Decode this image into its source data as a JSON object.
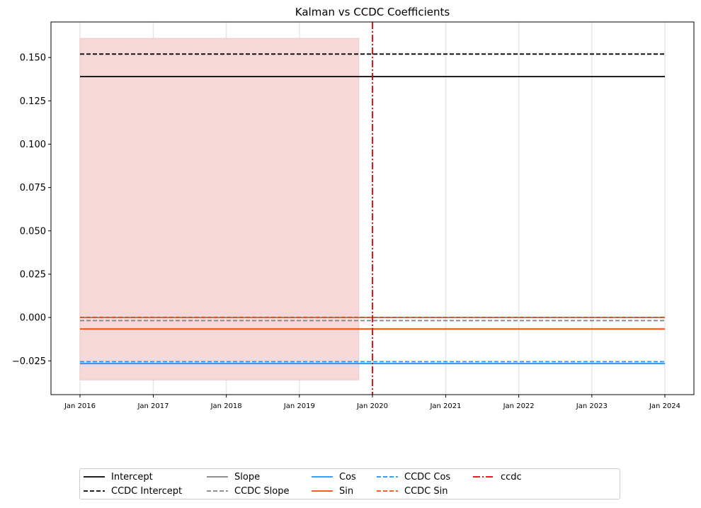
{
  "chart_data": {
    "type": "line",
    "title": "Kalman vs CCDC Coefficients",
    "xlabel": "",
    "ylabel": "",
    "x_range": [
      "2016-01-01",
      "2024-01-01"
    ],
    "ylim": [
      -0.0445,
      0.1705
    ],
    "x_ticks": [
      {
        "date": "2016-01-01",
        "label": "Jan 2016"
      },
      {
        "date": "2017-01-01",
        "label": "Jan 2017"
      },
      {
        "date": "2018-01-01",
        "label": "Jan 2018"
      },
      {
        "date": "2019-01-01",
        "label": "Jan 2019"
      },
      {
        "date": "2020-01-01",
        "label": "Jan 2020"
      },
      {
        "date": "2021-01-01",
        "label": "Jan 2021"
      },
      {
        "date": "2022-01-01",
        "label": "Jan 2022"
      },
      {
        "date": "2023-01-01",
        "label": "Jan 2023"
      },
      {
        "date": "2024-01-01",
        "label": "Jan 2024"
      }
    ],
    "y_ticks": [
      {
        "value": 0.15,
        "label": "0.150"
      },
      {
        "value": 0.125,
        "label": "0.125"
      },
      {
        "value": 0.1,
        "label": "0.100"
      },
      {
        "value": 0.075,
        "label": "0.075"
      },
      {
        "value": 0.05,
        "label": "0.050"
      },
      {
        "value": 0.025,
        "label": "0.025"
      },
      {
        "value": 0.0,
        "label": "0.000"
      },
      {
        "value": -0.025,
        "label": "−0.025"
      }
    ],
    "grid": "vertical",
    "shaded_region": {
      "x": [
        "2016-01-01",
        "2019-10-25"
      ],
      "y": [
        -0.036,
        0.161
      ],
      "color": "#f7d8d9"
    },
    "series": [
      {
        "name": "Intercept",
        "style": "solid",
        "color": "#000000",
        "x": [
          "2016-01-01",
          "2024-01-01"
        ],
        "values": [
          0.139,
          0.139
        ]
      },
      {
        "name": "CCDC Intercept",
        "style": "dashed",
        "color": "#000000",
        "x": [
          "2016-01-01",
          "2024-01-01"
        ],
        "values": [
          0.152,
          0.152
        ]
      },
      {
        "name": "Slope",
        "style": "solid",
        "color": "#808080",
        "x": [
          "2016-01-01",
          "2024-01-01"
        ],
        "values": [
          0.0,
          0.0
        ]
      },
      {
        "name": "CCDC Slope",
        "style": "dashed",
        "color": "#808080",
        "x": [
          "2016-01-01",
          "2024-01-01"
        ],
        "values": [
          -0.0018,
          -0.0018
        ]
      },
      {
        "name": "Cos",
        "style": "solid",
        "color": "#1e90ff",
        "x": [
          "2016-01-01",
          "2024-01-01"
        ],
        "values": [
          -0.0266,
          -0.0266
        ]
      },
      {
        "name": "Sin",
        "style": "solid",
        "color": "#ff4500",
        "x": [
          "2016-01-01",
          "2024-01-01"
        ],
        "values": [
          -0.0066,
          -0.0066
        ]
      },
      {
        "name": "CCDC Cos",
        "style": "dashed",
        "color": "#1e90ff",
        "x": [
          "2016-01-01",
          "2024-01-01"
        ],
        "values": [
          -0.0255,
          -0.0255
        ]
      },
      {
        "name": "CCDC Sin",
        "style": "dashed",
        "color": "#ff4500",
        "x": [
          "2016-01-01",
          "2024-01-01"
        ],
        "values": [
          0.0001,
          0.0001
        ]
      }
    ],
    "vlines": [
      {
        "name": "ccdc",
        "style": "dashdot",
        "color": "#e00000",
        "x": "2020-01-01"
      }
    ],
    "legend_placement": "bottom-center",
    "legend_order": [
      "Intercept",
      "CCDC Intercept",
      "Slope",
      "CCDC Slope",
      "Cos",
      "Sin",
      "CCDC Cos",
      "CCDC Sin",
      "ccdc"
    ]
  }
}
